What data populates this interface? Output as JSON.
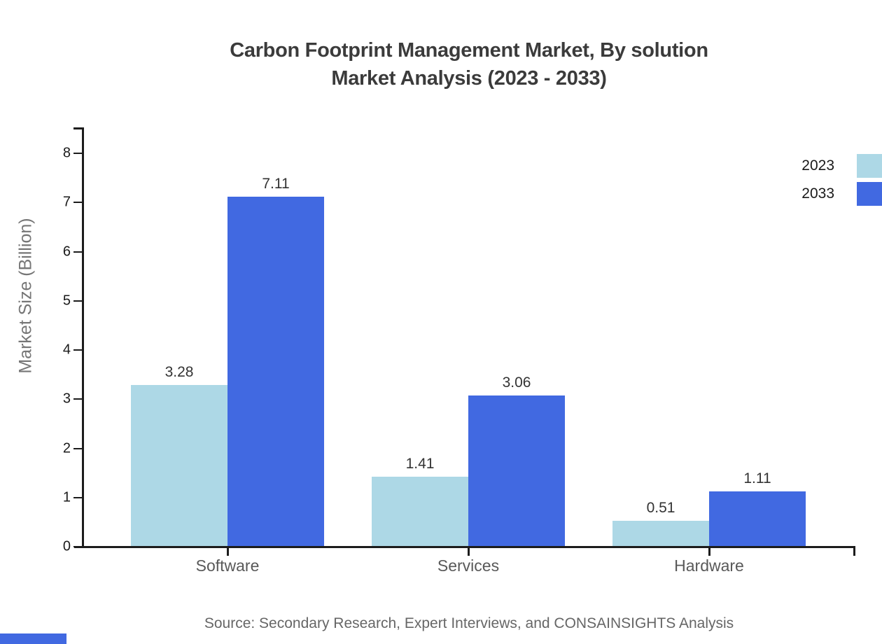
{
  "title": {
    "line1": "Carbon Footprint Management Market, By solution",
    "line2": "Market Analysis (2023 - 2033)"
  },
  "source": "Source: Secondary Research, Expert Interviews, and CONSAINSIGHTS Analysis",
  "colors": {
    "series_2023": "#ADD8E6",
    "series_2033": "#4169E1",
    "axis": "#1c1c1c",
    "title_text": "#3b3b3b",
    "muted_text": "#595959",
    "brand_strip": "#4169E1"
  },
  "chart_data": {
    "type": "bar",
    "title": "Carbon Footprint Management Market, By solution Market Analysis (2023 - 2033)",
    "categories": [
      "Software",
      "Services",
      "Hardware"
    ],
    "series": [
      {
        "name": "2023",
        "color": "#ADD8E6",
        "values": [
          3.28,
          1.41,
          0.51
        ]
      },
      {
        "name": "2033",
        "color": "#4169E1",
        "values": [
          7.11,
          3.06,
          1.11
        ]
      }
    ],
    "xlabel": "",
    "ylabel": "Market Size (Billion)",
    "yticks": [
      0,
      1,
      2,
      3,
      4,
      5,
      6,
      7,
      8
    ],
    "ylim": [
      0,
      8.5
    ],
    "grid": false,
    "bar_value_labels": true,
    "legend_position": "top-right"
  }
}
